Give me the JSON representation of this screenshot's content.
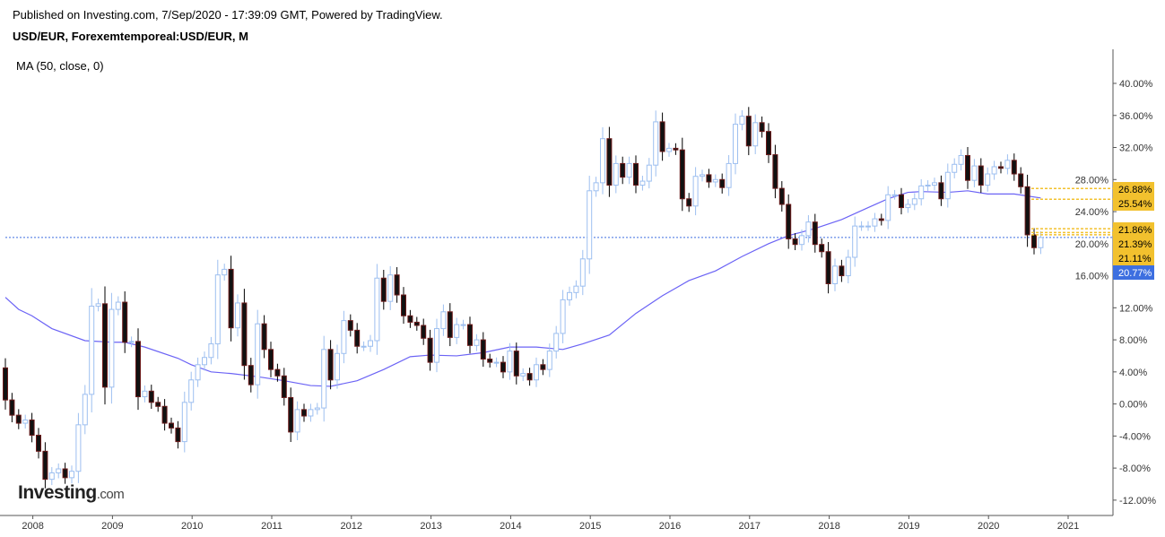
{
  "header": {
    "published": "Published on Investing.com, 7/Sep/2020 - 17:39:09 GMT, Powered by TradingView.",
    "symbol": "USD/EUR, Forexemtemporeal:USD/EUR, M"
  },
  "indicator": {
    "label": "MA (50, close, 0)",
    "color": "#6b63f5"
  },
  "logo": {
    "main": "Investing",
    "suffix": ".com"
  },
  "chart_data": {
    "type": "candlestick",
    "title": "USD/EUR, Forexemtemporeal:USD/EUR, M",
    "interval": "monthly",
    "start": "2007-09",
    "end": "2020-09",
    "ylim": [
      -13.5,
      43.5
    ],
    "yticks": [
      "40.00%",
      "36.00%",
      "32.00%",
      "28.00%",
      "24.00%",
      "20.00%",
      "16.00%",
      "12.00%",
      "8.00%",
      "4.00%",
      "0.00%",
      "-4.00%",
      "-8.00%",
      "-12.00%"
    ],
    "ytick_values": [
      40,
      36,
      32,
      28,
      24,
      20,
      16,
      12,
      8,
      4,
      0,
      -4,
      -8,
      -12
    ],
    "xticks": [
      "2008",
      "2009",
      "2010",
      "2011",
      "2012",
      "2013",
      "2014",
      "2015",
      "2016",
      "2017",
      "2018",
      "2019",
      "2020",
      "2021"
    ],
    "first_open": 4.5,
    "closes": [
      0.5,
      -1.4,
      -2.4,
      -2.0,
      -3.9,
      -5.9,
      -9.4,
      -8.6,
      -8.1,
      -9.2,
      -8.4,
      -2.6,
      1.2,
      12.2,
      12.5,
      2.1,
      11.8,
      12.7,
      7.7,
      7.8,
      0.9,
      1.6,
      0.2,
      -0.3,
      -2.4,
      -3.0,
      -4.7,
      0.2,
      3.0,
      4.9,
      5.8,
      7.5,
      16.1,
      16.8,
      9.5,
      12.6,
      4.8,
      2.4,
      10.0,
      6.8,
      4.3,
      3.5,
      0.8,
      -3.5,
      -0.7,
      -1.5,
      -0.7,
      -0.5,
      6.8,
      3.0,
      6.3,
      10.4,
      9.2,
      7.2,
      7.2,
      7.9,
      15.7,
      12.8,
      16.1,
      13.6,
      11.0,
      10.2,
      9.8,
      8.2,
      5.2,
      9.4,
      11.5,
      8.3,
      9.9,
      9.9,
      7.3,
      8.0,
      5.6,
      5.2,
      5.2,
      4.0,
      6.6,
      3.5,
      3.8,
      3.0,
      4.9,
      4.3,
      6.6,
      8.8,
      13.0,
      13.9,
      14.7,
      18.1,
      26.6,
      27.6,
      33.1,
      27.3,
      30.0,
      28.3,
      30.0,
      27.3,
      27.8,
      29.8,
      35.2,
      31.5,
      31.9,
      31.7,
      25.6,
      24.7,
      28.4,
      28.6,
      27.7,
      28.0,
      27.0,
      30.0,
      34.9,
      35.9,
      32.2,
      35.1,
      34.0,
      31.1,
      26.9,
      24.9,
      20.6,
      19.9,
      21.0,
      22.7,
      19.9,
      19.0,
      15.0,
      17.2,
      16.0,
      18.3,
      22.2,
      22.2,
      22.2,
      23.1,
      22.9,
      26.1,
      26.1,
      24.5,
      24.9,
      25.6,
      27.2,
      27.3,
      27.6,
      25.6,
      28.9,
      29.9,
      31.0,
      27.9,
      29.7,
      27.3,
      28.7,
      29.6,
      29.4,
      30.4,
      28.7,
      27.1,
      21.1,
      19.5,
      20.77
    ],
    "ma_series": {
      "name": "MA (50, close, 0)",
      "points": [
        [
          0,
          13.3
        ],
        [
          2,
          11.8
        ],
        [
          4,
          11.0
        ],
        [
          7,
          9.4
        ],
        [
          12,
          7.9
        ],
        [
          16,
          7.7
        ],
        [
          18,
          7.7
        ],
        [
          21,
          7.1
        ],
        [
          26,
          5.7
        ],
        [
          28,
          4.9
        ],
        [
          31,
          4.0
        ],
        [
          34,
          3.8
        ],
        [
          38,
          3.4
        ],
        [
          42,
          2.9
        ],
        [
          46,
          2.3
        ],
        [
          49,
          2.2
        ],
        [
          53,
          2.9
        ],
        [
          57,
          4.3
        ],
        [
          61,
          5.9
        ],
        [
          64,
          6.1
        ],
        [
          68,
          6.0
        ],
        [
          72,
          6.4
        ],
        [
          76,
          7.1
        ],
        [
          80,
          7.1
        ],
        [
          84,
          6.8
        ],
        [
          87,
          7.5
        ],
        [
          91,
          8.6
        ],
        [
          95,
          11.3
        ],
        [
          99,
          13.5
        ],
        [
          103,
          15.4
        ],
        [
          107,
          16.6
        ],
        [
          111,
          18.4
        ],
        [
          115,
          20.0
        ],
        [
          118,
          21.0
        ],
        [
          122,
          21.9
        ],
        [
          126,
          23.0
        ],
        [
          130,
          24.5
        ],
        [
          133,
          25.6
        ],
        [
          136,
          26.4
        ],
        [
          138,
          26.5
        ],
        [
          142,
          26.4
        ],
        [
          145,
          26.6
        ],
        [
          148,
          26.2
        ],
        [
          152,
          26.2
        ],
        [
          156,
          25.7
        ]
      ]
    },
    "current_price": {
      "value": 20.77,
      "label": "20.77%",
      "color": "#3d6fe0"
    },
    "price_markers": [
      {
        "value": 26.88,
        "label": "26.88%"
      },
      {
        "value": 25.54,
        "label": "25.54%"
      },
      {
        "value": 21.86,
        "label": "21.86%"
      },
      {
        "value": 21.39,
        "label": "21.39%"
      },
      {
        "value": 21.11,
        "label": "21.11%"
      }
    ],
    "marker_color": "#f2c12e",
    "up_color": "#9dbff0",
    "down_color": "#111111",
    "down_border": "#6b1a1a"
  }
}
